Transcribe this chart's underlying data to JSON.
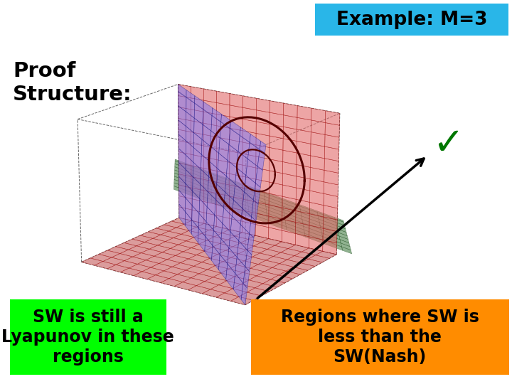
{
  "title": "Example: M=3",
  "title_bg": "#29B6E8",
  "title_color": "black",
  "title_fontsize": 19,
  "proof_text": "Proof\nStructure:",
  "proof_fontsize": 21,
  "proof_color": "black",
  "label_sw_text": "SW is still a\nLyapunov in these\nregions",
  "label_sw_bg": "#00FF00",
  "label_sw_color": "black",
  "label_sw_fontsize": 17,
  "label_regions_text": "Regions where SW is\nless than the\nSW(Nash)",
  "label_regions_bg": "#FF8C00",
  "label_regions_color": "black",
  "label_regions_fontsize": 17,
  "checkmark_color": "#007700",
  "checkmark_fontsize": 38,
  "bg_color": "white",
  "arrow_color": "black",
  "plane_red_color": "#FF7777",
  "plane_red_alpha": 0.6,
  "plane_blue_color": "#7777FF",
  "plane_blue_alpha": 0.5,
  "plane_green_color": "#55BB55",
  "plane_green_alpha": 0.55,
  "ellipse_color": "#550000",
  "view_elev": 18,
  "view_azim": -55
}
